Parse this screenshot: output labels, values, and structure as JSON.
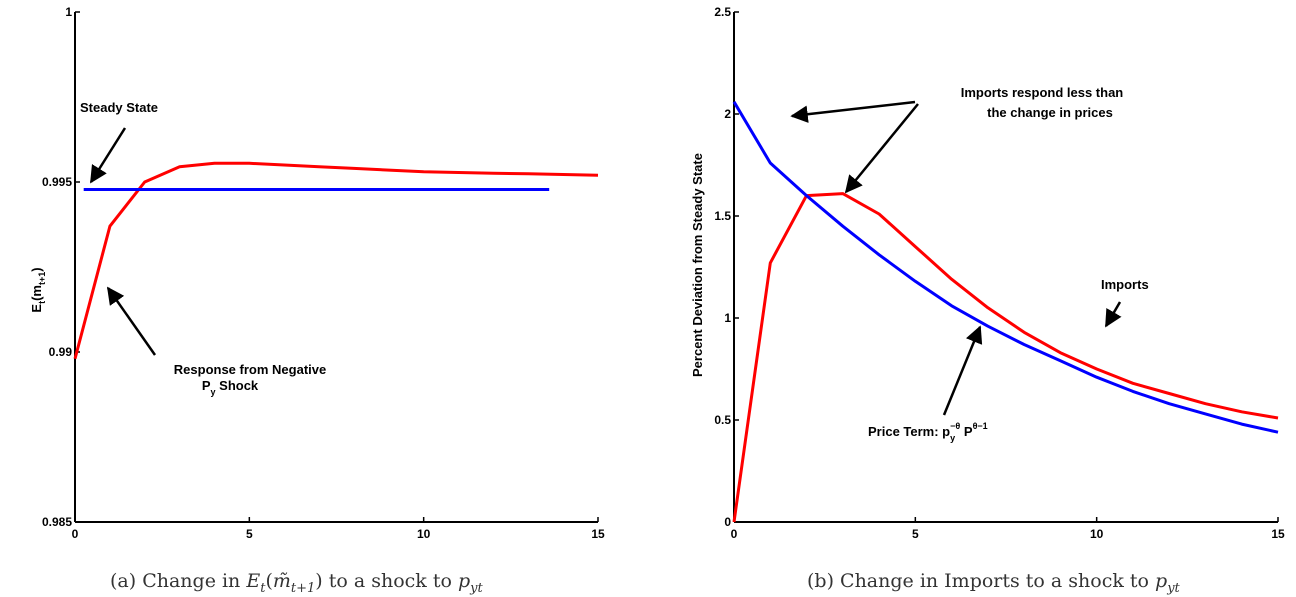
{
  "chart_data": [
    {
      "type": "line",
      "caption": {
        "prefix": "(a)  Change in ",
        "math": "E",
        "sub": "t",
        "open": "(",
        "m": "m̃",
        "msub": "t+1",
        "close": ")",
        "suffix": " to a shock to ",
        "p": "p",
        "psub": "yt"
      },
      "ylabel": {
        "main": "E",
        "sub1": "t",
        "open": "(m",
        "sub2": "t+1",
        "close": ")"
      },
      "xlim": [
        0,
        15
      ],
      "ylim": [
        0.985,
        1.0
      ],
      "xticks": [
        0,
        5,
        10,
        15
      ],
      "yticks": [
        0.985,
        0.99,
        0.995,
        1.0
      ],
      "xtick_labels": [
        "0",
        "5",
        "10",
        "15"
      ],
      "ytick_labels": [
        "0.985",
        "0.99",
        "0.995",
        "1"
      ],
      "grid": false,
      "series": [
        {
          "color": "#ff0000",
          "x": [
            0,
            1,
            2,
            3,
            4,
            5,
            6,
            7,
            8,
            9,
            10,
            11,
            12,
            13,
            14,
            15
          ],
          "y": [
            0.9898,
            0.9937,
            0.995,
            0.99545,
            0.99555,
            0.99555,
            0.9955,
            0.99545,
            0.9954,
            0.99535,
            0.9953,
            0.99528,
            0.99526,
            0.99524,
            0.99522,
            0.9952
          ]
        },
        {
          "color": "#0000ff",
          "x": [
            0.25,
            13.6
          ],
          "y": [
            0.99478,
            0.99478
          ]
        }
      ],
      "annotations": [
        {
          "lines": [
            "Steady State"
          ]
        },
        {
          "lines": [
            "Response from Negative"
          ],
          "line2": {
            "main": "P",
            "sub": "y",
            "rest": " Shock"
          }
        }
      ]
    },
    {
      "type": "line",
      "caption": {
        "prefix": "(b)  Change in Imports to a shock to ",
        "p": "p",
        "psub": "yt"
      },
      "ylabel": "Percent Deviation from Steady State",
      "xlim": [
        0,
        15
      ],
      "ylim": [
        0,
        2.5
      ],
      "xticks": [
        0,
        5,
        10,
        15
      ],
      "yticks": [
        0,
        0.5,
        1,
        1.5,
        2,
        2.5
      ],
      "xtick_labels": [
        "0",
        "5",
        "10",
        "15"
      ],
      "ytick_labels": [
        "0",
        "0.5",
        "1",
        "1.5",
        "2",
        "2.5"
      ],
      "grid": false,
      "series": [
        {
          "color": "#ff0000",
          "x": [
            0,
            1,
            2,
            3,
            4,
            5,
            6,
            7,
            8,
            9,
            10,
            11,
            12,
            13,
            14,
            15
          ],
          "y": [
            0.0,
            1.27,
            1.6,
            1.61,
            1.51,
            1.35,
            1.19,
            1.05,
            0.93,
            0.83,
            0.75,
            0.68,
            0.63,
            0.58,
            0.54,
            0.51
          ]
        },
        {
          "color": "#0000ff",
          "x": [
            0,
            1,
            2,
            3,
            4,
            5,
            6,
            7,
            8,
            9,
            10,
            11,
            12,
            13,
            14,
            15
          ],
          "y": [
            2.06,
            1.76,
            1.6,
            1.45,
            1.31,
            1.18,
            1.06,
            0.96,
            0.87,
            0.79,
            0.71,
            0.64,
            0.58,
            0.53,
            0.48,
            0.44
          ]
        }
      ],
      "annotations": [
        {
          "lines": [
            "Imports respond less than",
            "the change in prices"
          ]
        },
        {
          "lines": [
            "Imports"
          ]
        },
        {
          "price_term": {
            "text": "Price Term: p",
            "sub": "y",
            "sup1": "−θ",
            "mid": " P",
            "sup2": "θ−1"
          }
        }
      ]
    }
  ]
}
